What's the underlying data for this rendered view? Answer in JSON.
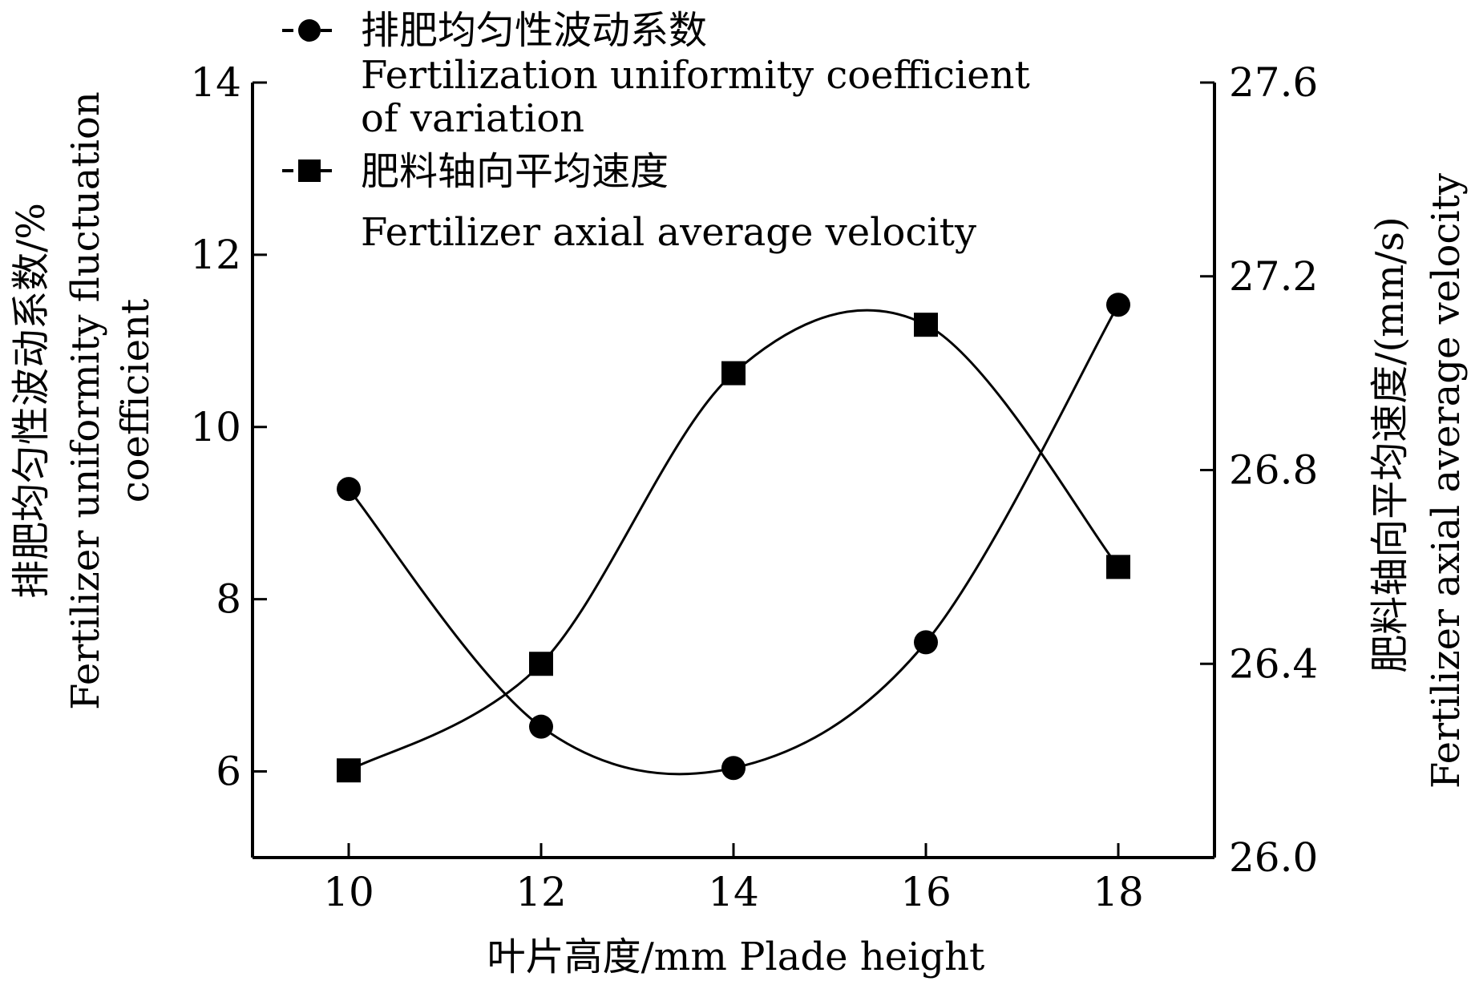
{
  "chart_data": {
    "type": "line",
    "x": [
      10,
      12,
      14,
      16,
      18
    ],
    "xlim": [
      9,
      19
    ],
    "x_ticks": [
      10,
      12,
      14,
      16,
      18
    ],
    "xlabel": "叶片高度/mm  Plade height",
    "y_left": {
      "label_cn": "排肥均匀性波动系数/%",
      "label_en_1": "Fertilizer uniformity fluctuation",
      "label_en_2": "coefficient",
      "lim": [
        5,
        14
      ],
      "ticks": [
        6,
        8,
        10,
        12,
        14
      ]
    },
    "y_right": {
      "label_cn": "肥料轴向平均速度/(mm/s)",
      "label_en": "Fertilizer axial average velocity",
      "lim": [
        26.0,
        27.6
      ],
      "ticks": [
        "26.0",
        "26.4",
        "26.8",
        "27.2",
        "27.6"
      ]
    },
    "series": [
      {
        "name_cn": "排肥均匀性波动系数",
        "name_en_1": "Fertilization uniformity coefficient",
        "name_en_2": "of variation",
        "axis": "left",
        "marker": "circle",
        "values": [
          9.28,
          6.52,
          6.04,
          7.5,
          11.42
        ]
      },
      {
        "name_cn": "肥料轴向平均速度",
        "name_en": "Fertilizer axial average velocity",
        "axis": "right",
        "marker": "square",
        "values": [
          26.18,
          26.4,
          27.0,
          27.1,
          26.6
        ]
      }
    ],
    "grid": false,
    "legend_position": "top-left"
  }
}
